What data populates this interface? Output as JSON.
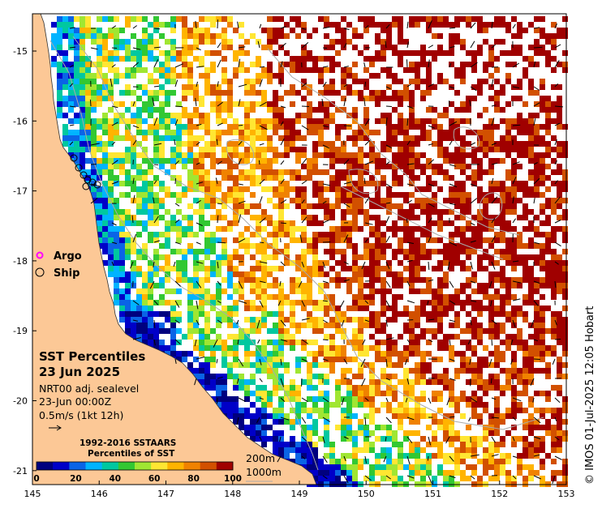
{
  "map": {
    "title": "SST Percentiles",
    "date": "23 Jun 2025",
    "product": "NRT00 adj. sealevel",
    "time": "23-Jun 00:00Z",
    "scale_text": "0.5m/s (1kt 12h)",
    "copyright": "© IMOS 01-Jul-2025 12:05 Hobart",
    "legend": {
      "argo": "Argo",
      "ship": "Ship",
      "argo_color": "#ff00ff",
      "ship_color": "#000000"
    },
    "colorbar": {
      "title_line1": "1992-2016 SSTAARS",
      "title_line2": "Percentiles of SST",
      "tick_labels": [
        "0",
        "20",
        "40",
        "60",
        "80",
        "100"
      ],
      "colors": [
        "#00007f",
        "#0000c8",
        "#0a64e6",
        "#00b4ff",
        "#00c8a0",
        "#32c832",
        "#a0e632",
        "#ffe632",
        "#ffb400",
        "#f08200",
        "#d25000",
        "#a00000"
      ]
    },
    "isobaths": {
      "label_1": "200m",
      "label_2": "1000m"
    },
    "axes": {
      "x_ticks": [
        "145",
        "146",
        "147",
        "148",
        "149",
        "150",
        "151",
        "152",
        "153"
      ],
      "y_ticks": [
        "-15",
        "-16",
        "-17",
        "-18",
        "-19",
        "-20",
        "-21"
      ]
    },
    "colors": {
      "land": "#fcc896",
      "ocean": "#ffffff",
      "isobath": "#aaaaaa"
    }
  }
}
